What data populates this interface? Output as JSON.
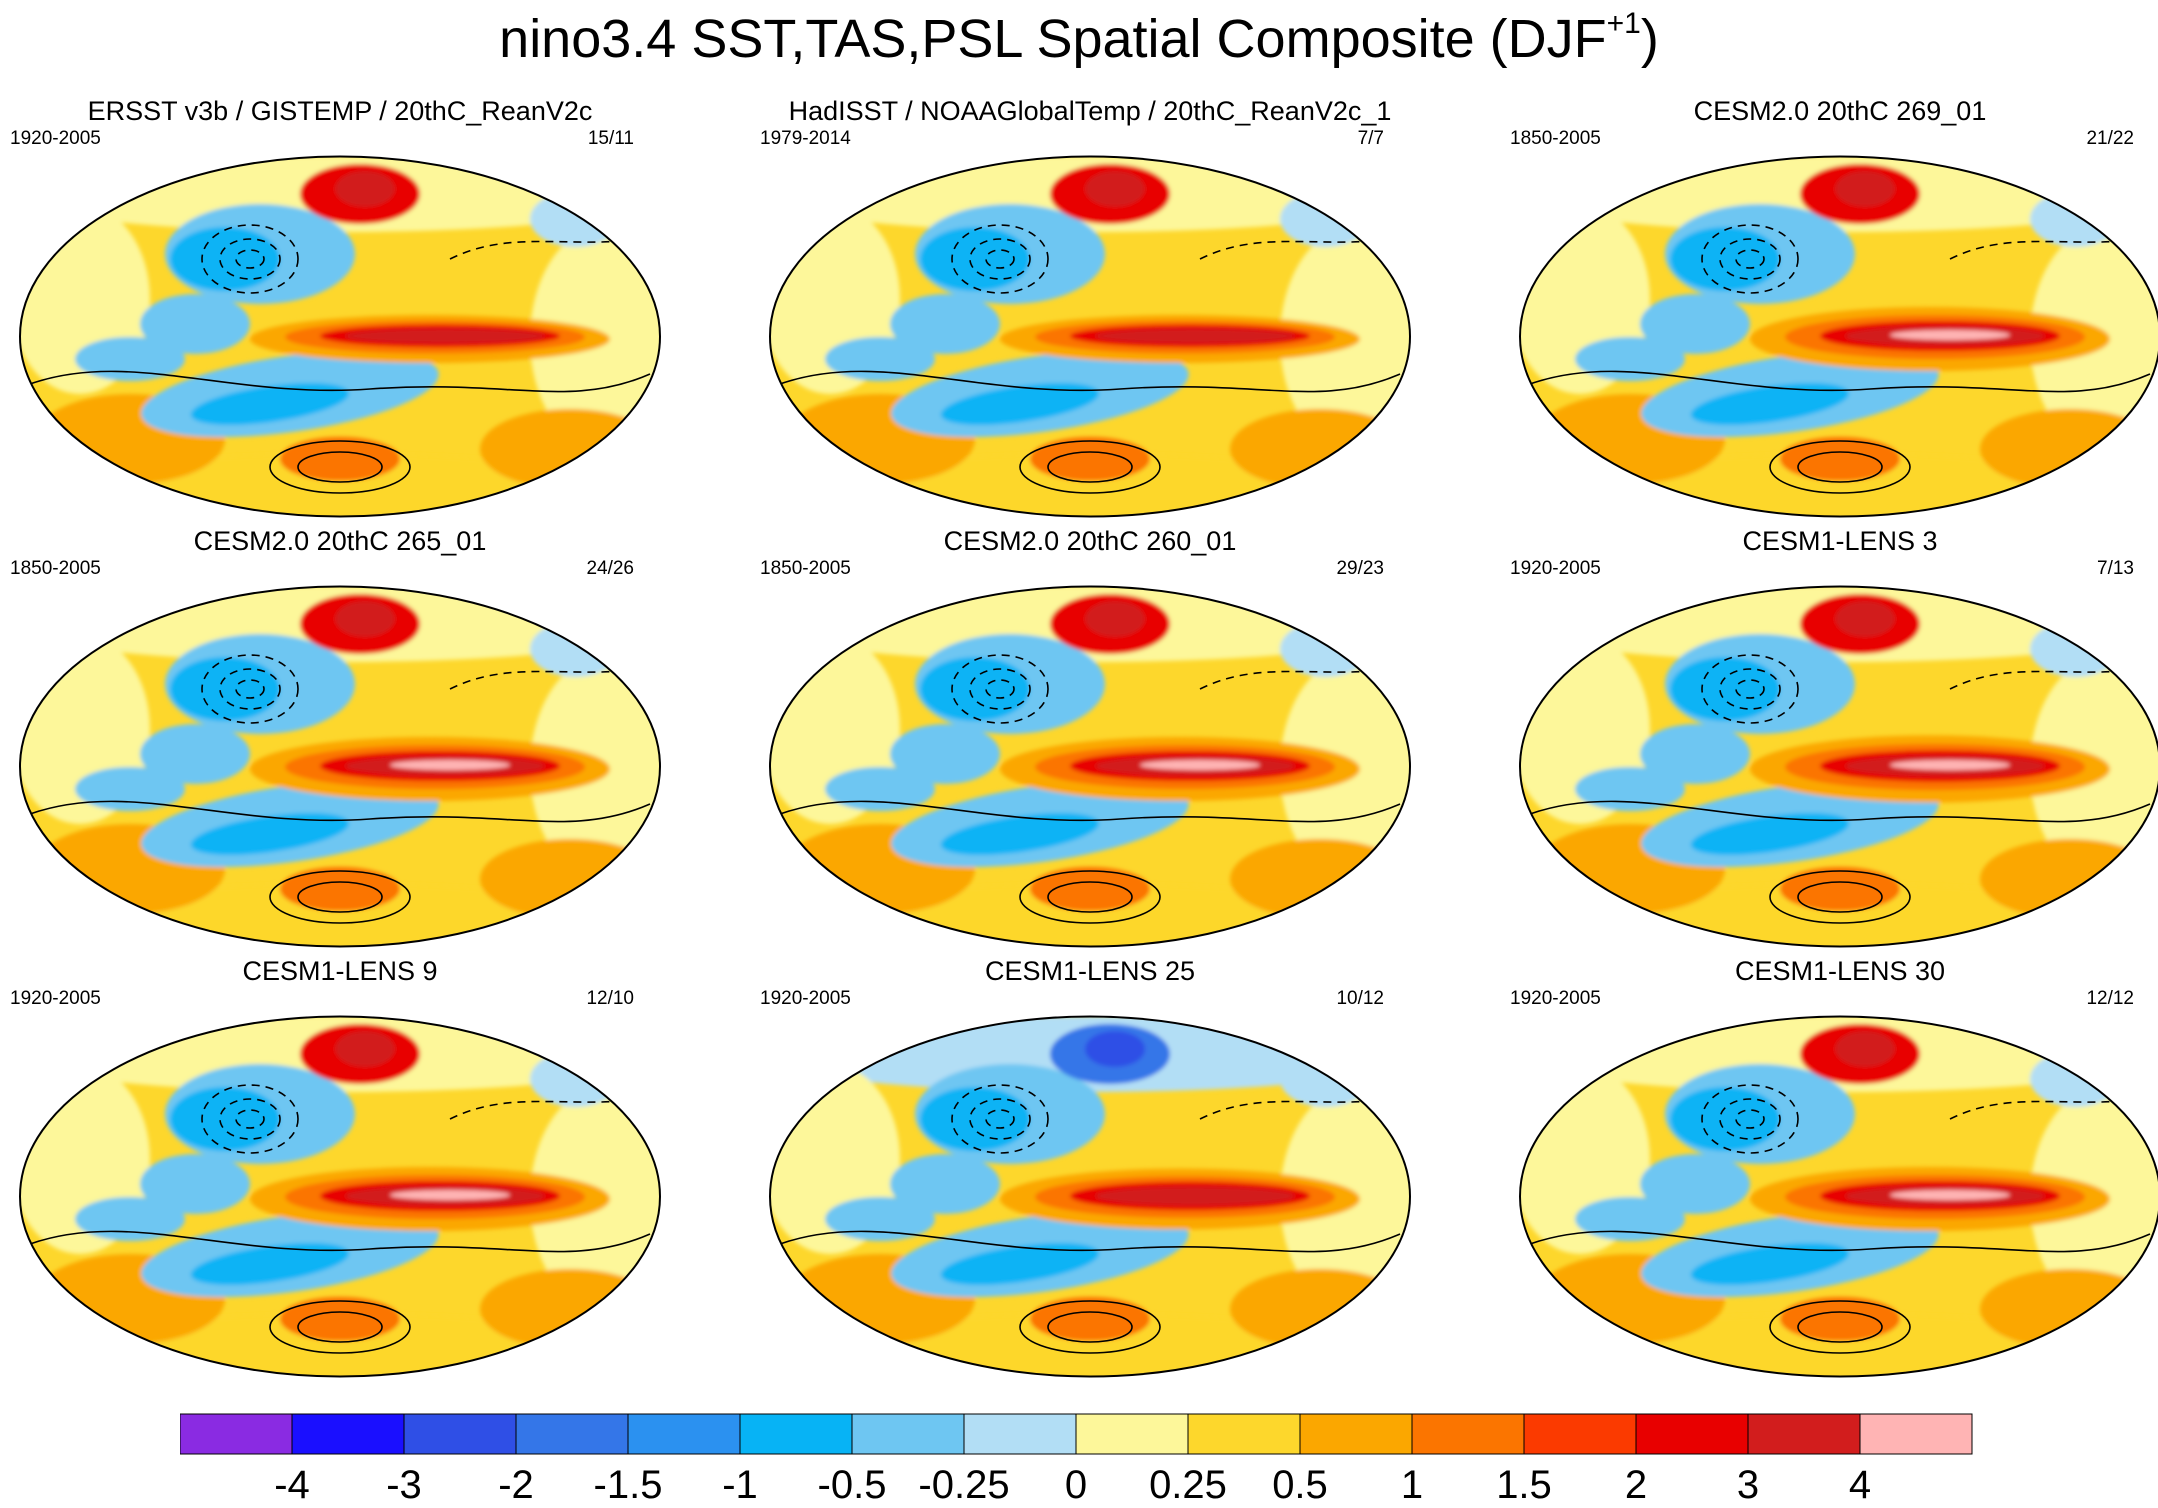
{
  "chart_data": {
    "type": "heatmap",
    "title": "nino3.4 SST,TAS,PSL Spatial Composite (DJF",
    "title_superscript": "+1",
    "title_suffix": ")",
    "projection": "Robinson global map, Pacific-centered; shading = SST/TAS composite anomaly, contours = PSL (solid positive, dashed negative)",
    "panels": [
      {
        "title": "ERSST v3b / GISTEMP / 20thC_ReanV2c",
        "years": "1920-2005",
        "count": "15/11"
      },
      {
        "title": "HadISST / NOAAGlobalTemp / 20thC_ReanV2c_1",
        "years": "1979-2014",
        "count": "7/7"
      },
      {
        "title": "CESM2.0 20thC 269_01",
        "years": "1850-2005",
        "count": "21/22"
      },
      {
        "title": "CESM2.0 20thC 265_01",
        "years": "1850-2005",
        "count": "24/26"
      },
      {
        "title": "CESM2.0 20thC 260_01",
        "years": "1850-2005",
        "count": "29/23"
      },
      {
        "title": "CESM1-LENS 3",
        "years": "1920-2005",
        "count": "7/13"
      },
      {
        "title": "CESM1-LENS 9",
        "years": "1920-2005",
        "count": "12/10"
      },
      {
        "title": "CESM1-LENS 25",
        "years": "1920-2005",
        "count": "10/12"
      },
      {
        "title": "CESM1-LENS 30",
        "years": "1920-2005",
        "count": "12/12"
      }
    ],
    "colorbar": {
      "levels": [
        "-4",
        "-3",
        "-2",
        "-1.5",
        "-1",
        "-0.5",
        "-0.25",
        "0",
        "0.25",
        "0.5",
        "1",
        "1.5",
        "2",
        "3",
        "4"
      ],
      "colors": [
        "#8a2be2",
        "#1a0fff",
        "#2f4fe6",
        "#3476e8",
        "#2b91f0",
        "#07b3f5",
        "#6ec6f2",
        "#b2def5",
        "#fdf79a",
        "#fdd72c",
        "#fba700",
        "#fb7500",
        "#fb3a00",
        "#e80000",
        "#d21d1d",
        "#ffb4b4"
      ]
    }
  }
}
